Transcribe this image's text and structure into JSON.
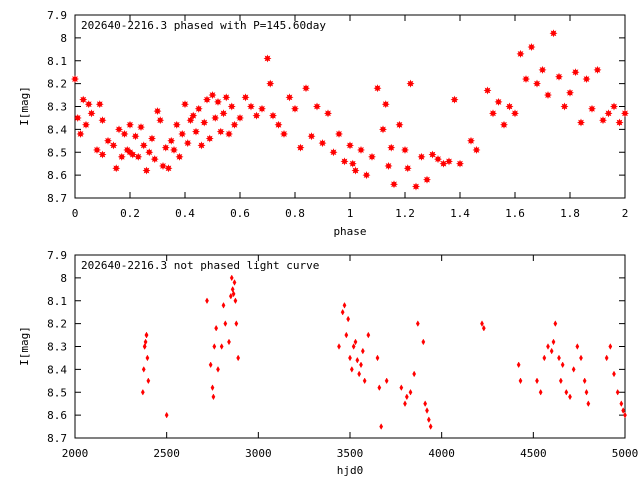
{
  "chart_data": [
    {
      "type": "scatter",
      "title": "202640-2216.3 phased with P=145.60day",
      "xlabel": "phase",
      "ylabel": "I[mag]",
      "xlim": [
        0,
        2
      ],
      "ylim": [
        8.7,
        7.9
      ],
      "y_inverted": true,
      "grid": false,
      "marker": "star",
      "color": "#ff0000",
      "xticks": [
        0,
        0.2,
        0.4,
        0.6,
        0.8,
        1,
        1.2,
        1.4,
        1.6,
        1.8,
        2
      ],
      "xtick_labels": [
        "0",
        "0.2",
        "0.4",
        "0.6",
        "0.8",
        "1",
        "1.2",
        "1.4",
        "1.6",
        "1.8",
        "2"
      ],
      "yticks": [
        7.9,
        8,
        8.1,
        8.2,
        8.3,
        8.4,
        8.5,
        8.6,
        8.7
      ],
      "ytick_labels": [
        "7.9",
        "8",
        "8.1",
        "8.2",
        "8.3",
        "8.4",
        "8.5",
        "8.6",
        "8.7"
      ],
      "x": [
        0.0,
        0.01,
        0.02,
        0.03,
        0.04,
        0.05,
        0.06,
        0.08,
        0.09,
        0.1,
        0.1,
        0.12,
        0.14,
        0.15,
        0.16,
        0.17,
        0.18,
        0.19,
        0.2,
        0.2,
        0.21,
        0.22,
        0.23,
        0.24,
        0.25,
        0.26,
        0.27,
        0.28,
        0.29,
        0.3,
        0.31,
        0.32,
        0.33,
        0.34,
        0.35,
        0.36,
        0.37,
        0.38,
        0.39,
        0.4,
        0.41,
        0.42,
        0.43,
        0.44,
        0.45,
        0.46,
        0.47,
        0.48,
        0.49,
        0.5,
        0.51,
        0.52,
        0.53,
        0.54,
        0.55,
        0.56,
        0.57,
        0.58,
        0.6,
        0.62,
        0.64,
        0.66,
        0.68,
        0.7,
        0.71,
        0.72,
        0.74,
        0.76,
        0.78,
        0.8,
        0.82,
        0.84,
        0.86,
        0.88,
        0.9,
        0.92,
        0.94,
        0.96,
        0.98,
        1.0,
        1.01,
        1.02,
        1.04,
        1.06,
        1.08,
        1.1,
        1.12,
        1.13,
        1.14,
        1.15,
        1.16,
        1.18,
        1.2,
        1.21,
        1.22,
        1.24,
        1.26,
        1.28,
        1.3,
        1.32,
        1.34,
        1.36,
        1.38,
        1.4,
        1.44,
        1.46,
        1.5,
        1.52,
        1.54,
        1.56,
        1.58,
        1.6,
        1.62,
        1.64,
        1.66,
        1.68,
        1.7,
        1.72,
        1.74,
        1.76,
        1.78,
        1.8,
        1.82,
        1.84,
        1.86,
        1.88,
        1.9,
        1.92,
        1.94,
        1.96,
        1.98,
        2.0
      ],
      "y": [
        8.18,
        8.35,
        8.42,
        8.27,
        8.38,
        8.29,
        8.33,
        8.49,
        8.29,
        8.36,
        8.51,
        8.45,
        8.47,
        8.57,
        8.4,
        8.52,
        8.42,
        8.49,
        8.38,
        8.5,
        8.51,
        8.43,
        8.52,
        8.39,
        8.47,
        8.58,
        8.5,
        8.44,
        8.53,
        8.32,
        8.36,
        8.56,
        8.48,
        8.57,
        8.45,
        8.49,
        8.38,
        8.52,
        8.42,
        8.29,
        8.46,
        8.36,
        8.34,
        8.41,
        8.31,
        8.47,
        8.37,
        8.27,
        8.44,
        8.25,
        8.35,
        8.28,
        8.41,
        8.33,
        8.26,
        8.42,
        8.3,
        8.38,
        8.35,
        8.26,
        8.3,
        8.34,
        8.31,
        8.09,
        8.2,
        8.34,
        8.38,
        8.42,
        8.26,
        8.31,
        8.48,
        8.22,
        8.43,
        8.3,
        8.46,
        8.33,
        8.5,
        8.42,
        8.54,
        8.47,
        8.55,
        8.58,
        8.49,
        8.6,
        8.52,
        8.22,
        8.4,
        8.29,
        8.56,
        8.48,
        8.64,
        8.38,
        8.49,
        8.57,
        8.2,
        8.65,
        8.52,
        8.62,
        8.51,
        8.53,
        8.55,
        8.54,
        8.27,
        8.55,
        8.45,
        8.49,
        8.23,
        8.33,
        8.28,
        8.38,
        8.3,
        8.33,
        8.07,
        8.18,
        8.04,
        8.2,
        8.14,
        8.25,
        7.98,
        8.17,
        8.3,
        8.24,
        8.15,
        8.37,
        8.18,
        8.31,
        8.14,
        8.36,
        8.33,
        8.3,
        8.37,
        8.33
      ],
      "_note_x": "phase values",
      "_note_y": "I magnitude values"
    },
    {
      "type": "scatter",
      "title": "202640-2216.3 not phased light curve",
      "xlabel": "hjd0",
      "ylabel": "I[mag]",
      "xlim": [
        2000,
        5000
      ],
      "ylim": [
        8.7,
        7.9
      ],
      "y_inverted": true,
      "grid": false,
      "marker": "diamond",
      "color": "#ff0000",
      "xticks": [
        2000,
        2500,
        3000,
        3500,
        4000,
        4500,
        5000
      ],
      "xtick_labels": [
        "2000",
        "2500",
        "3000",
        "3500",
        "4000",
        "4500",
        "5000"
      ],
      "yticks": [
        7.9,
        8,
        8.1,
        8.2,
        8.3,
        8.4,
        8.5,
        8.6,
        8.7
      ],
      "ytick_labels": [
        "7.9",
        "8",
        "8.1",
        "8.2",
        "8.3",
        "8.4",
        "8.5",
        "8.6",
        "8.7"
      ],
      "x": [
        2370,
        2375,
        2380,
        2385,
        2390,
        2395,
        2400,
        2380,
        2390,
        2500,
        2720,
        2740,
        2750,
        2755,
        2760,
        2770,
        2780,
        2800,
        2810,
        2820,
        2840,
        2850,
        2860,
        2870,
        2880,
        2890,
        2855,
        2865,
        2875,
        3440,
        3460,
        3470,
        3480,
        3490,
        3500,
        3510,
        3520,
        3530,
        3540,
        3550,
        3560,
        3570,
        3580,
        3600,
        3650,
        3660,
        3670,
        3700,
        3780,
        3800,
        3810,
        3830,
        3850,
        3870,
        3900,
        3910,
        3920,
        3930,
        3940,
        4220,
        4230,
        4420,
        4430,
        4520,
        4540,
        4560,
        4580,
        4600,
        4610,
        4620,
        4640,
        4650,
        4660,
        4680,
        4700,
        4720,
        4740,
        4760,
        4780,
        4790,
        4800,
        4900,
        4920,
        4940,
        4960,
        4980,
        4990,
        5000
      ],
      "y": [
        8.5,
        8.4,
        8.3,
        8.28,
        8.25,
        8.35,
        8.45,
        8.3,
        8.25,
        8.6,
        8.1,
        8.38,
        8.48,
        8.52,
        8.3,
        8.22,
        8.4,
        8.3,
        8.12,
        8.2,
        8.28,
        8.08,
        8.05,
        8.02,
        8.2,
        8.35,
        8.0,
        8.07,
        8.1,
        8.3,
        8.15,
        8.12,
        8.25,
        8.18,
        8.35,
        8.4,
        8.3,
        8.28,
        8.36,
        8.42,
        8.38,
        8.32,
        8.45,
        8.25,
        8.35,
        8.48,
        8.65,
        8.45,
        8.48,
        8.55,
        8.52,
        8.5,
        8.42,
        8.2,
        8.28,
        8.55,
        8.58,
        8.62,
        8.65,
        8.2,
        8.22,
        8.38,
        8.45,
        8.45,
        8.5,
        8.35,
        8.3,
        8.32,
        8.28,
        8.2,
        8.35,
        8.45,
        8.38,
        8.5,
        8.52,
        8.4,
        8.3,
        8.35,
        8.45,
        8.5,
        8.55,
        8.35,
        8.3,
        8.42,
        8.5,
        8.55,
        8.58,
        8.6
      ],
      "_note_x": "hjd0 values",
      "_note_y": "I magnitude values"
    }
  ]
}
